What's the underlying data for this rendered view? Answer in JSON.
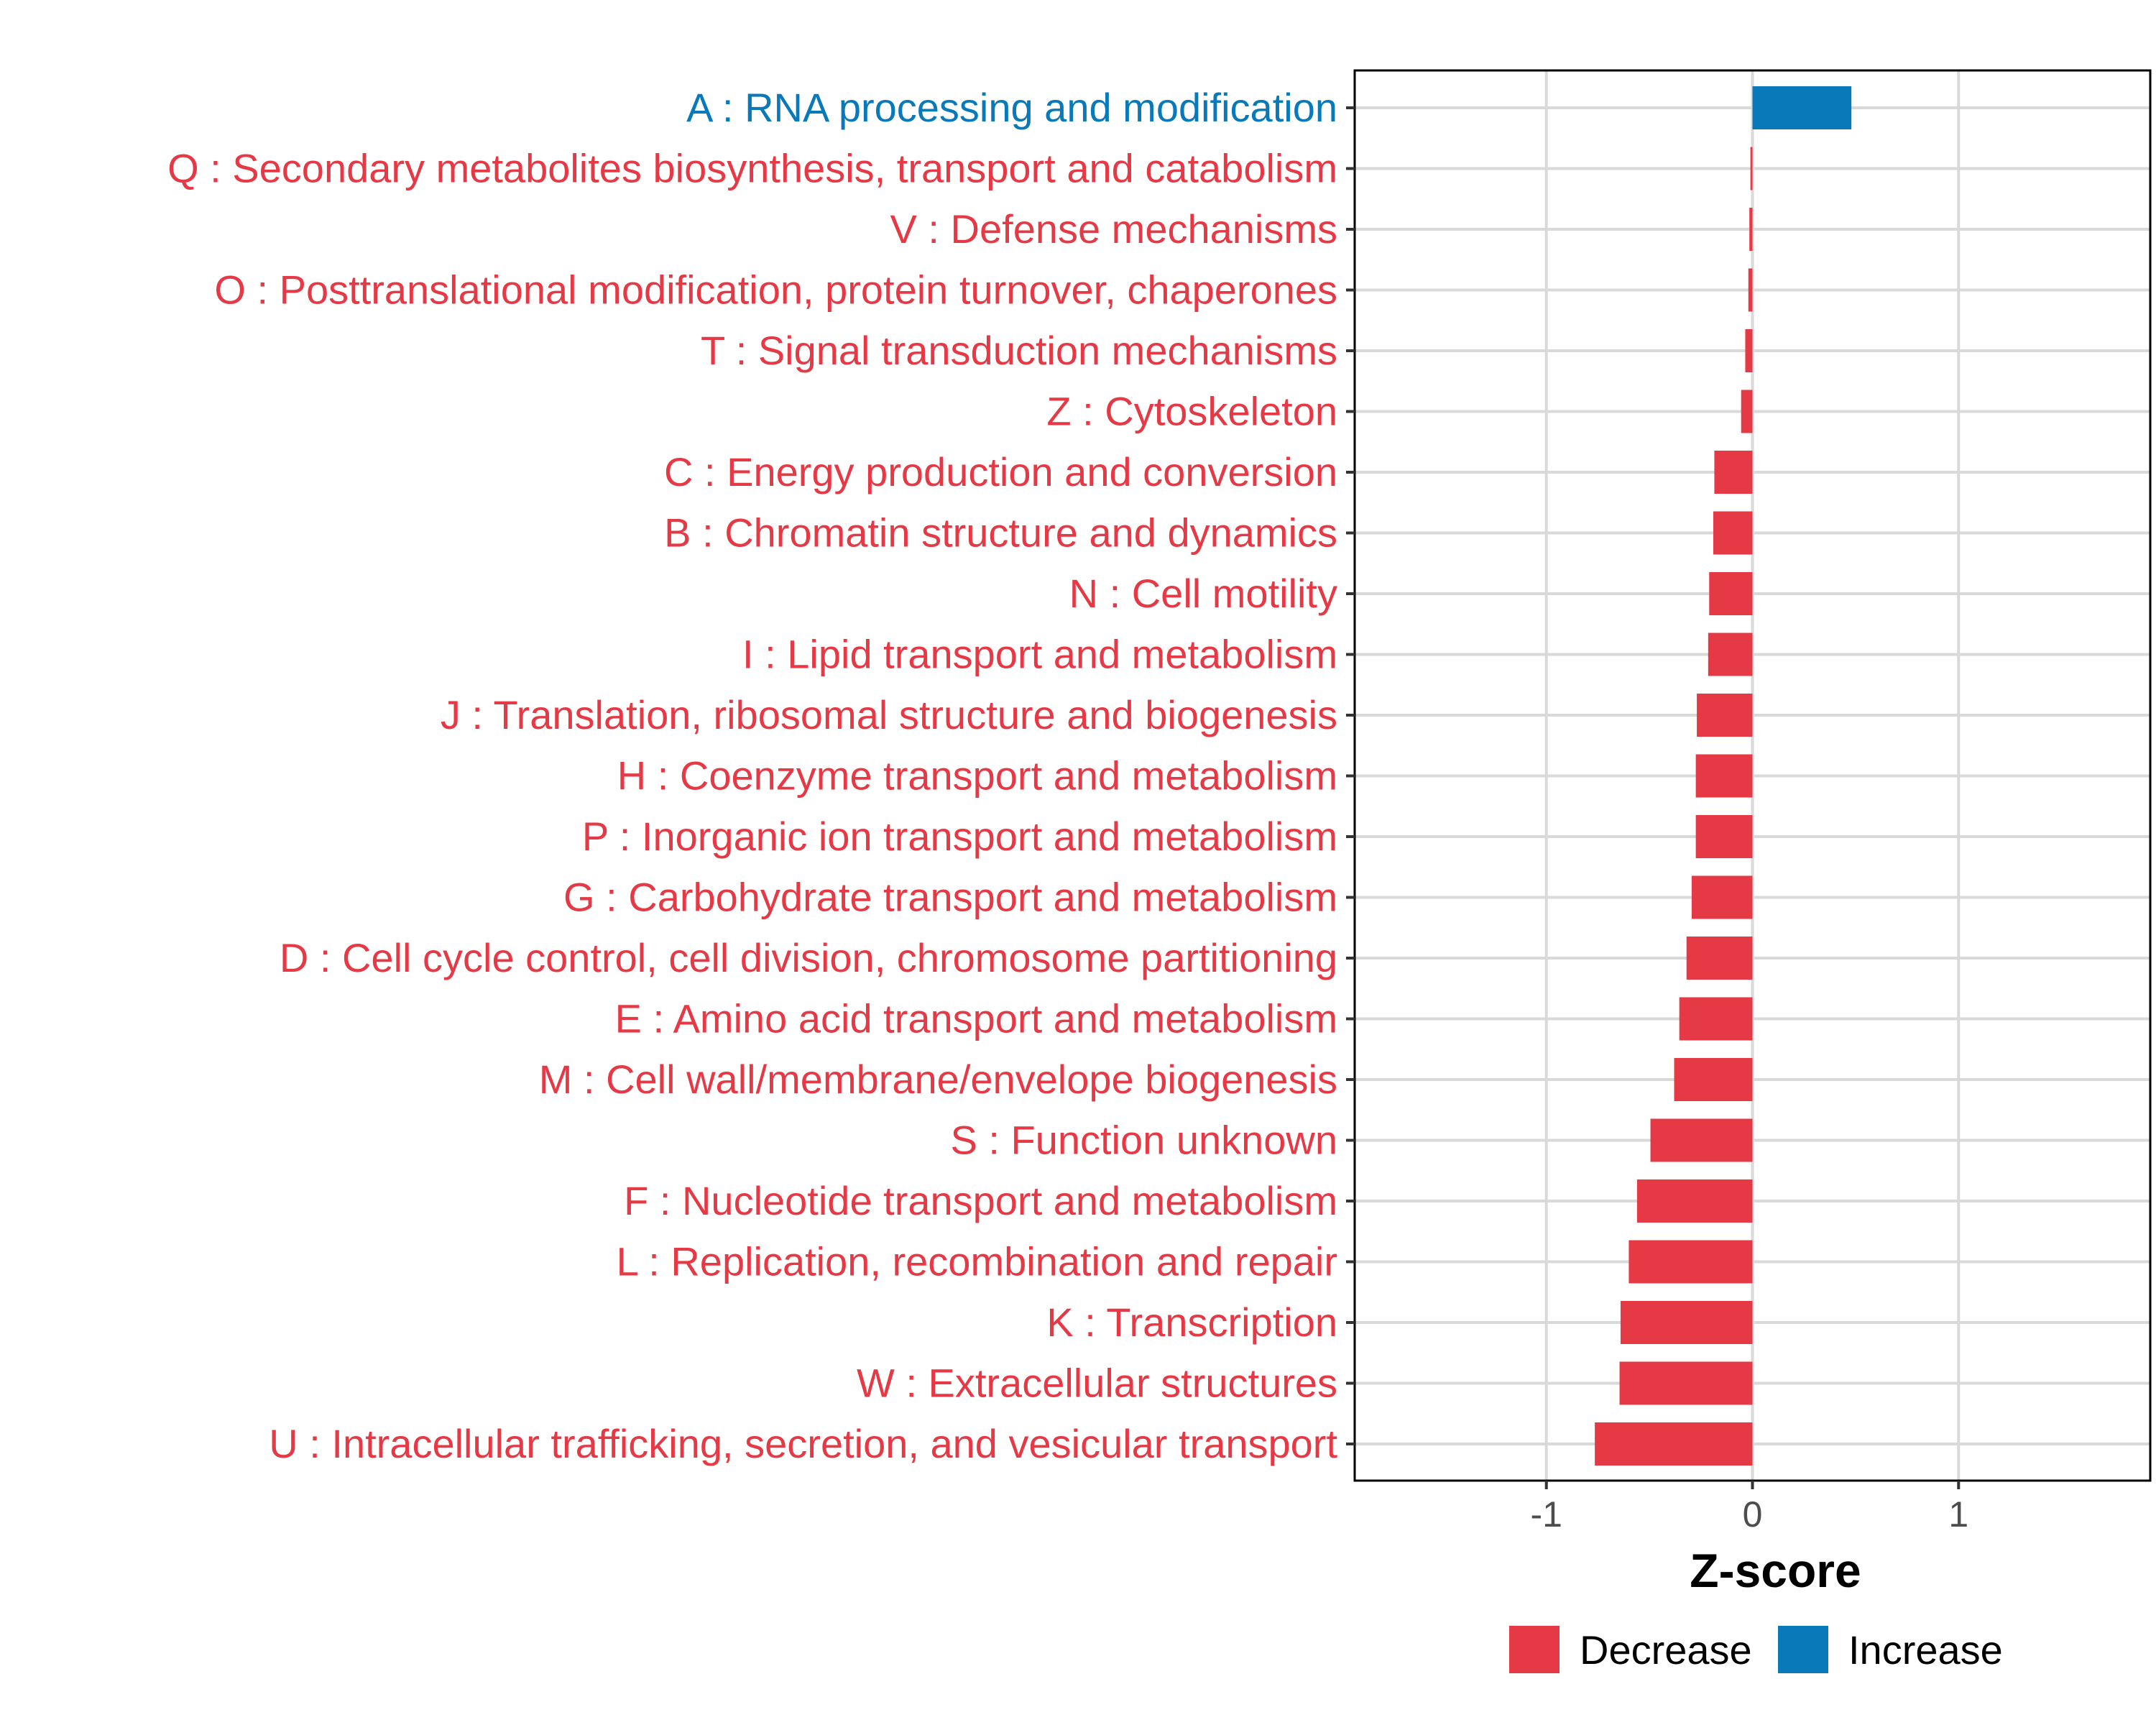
{
  "chart_data": {
    "type": "bar",
    "orientation": "horizontal",
    "title": "",
    "xlabel": "Z-score",
    "ylabel": "",
    "xlim": [
      -1.93,
      1.93
    ],
    "xticks": [
      -1,
      0,
      1
    ],
    "xtick_labels": [
      "-1",
      "0",
      "1"
    ],
    "grid": true,
    "legend_position": "bottom",
    "colors": {
      "Decrease": "#e63946",
      "Increase": "#0a79b9"
    },
    "legend": [
      {
        "key": "Decrease",
        "label": "Decrease"
      },
      {
        "key": "Increase",
        "label": "Increase"
      }
    ],
    "categories": [
      "A : RNA processing and modification",
      "Q : Secondary metabolites biosynthesis, transport and catabolism",
      "V : Defense mechanisms",
      "O : Posttranslational modification, protein turnover, chaperones",
      "T : Signal transduction mechanisms",
      "Z : Cytoskeleton",
      "C : Energy production and conversion",
      "B : Chromatin structure and dynamics",
      "N : Cell motility",
      "I : Lipid transport and metabolism",
      "J : Translation, ribosomal structure and biogenesis",
      "H : Coenzyme transport and metabolism",
      "P : Inorganic ion transport and metabolism",
      "G : Carbohydrate transport and metabolism",
      "D : Cell cycle control, cell division, chromosome partitioning",
      "E : Amino acid transport and metabolism",
      "M : Cell wall/membrane/envelope biogenesis",
      "S : Function unknown",
      "F : Nucleotide transport and metabolism",
      "L : Replication, recombination and repair",
      "K : Transcription",
      "W : Extracellular structures",
      "U : Intracellular trafficking, secretion, and vesicular transport"
    ],
    "values": [
      0.48,
      -0.01,
      -0.015,
      -0.02,
      -0.035,
      -0.055,
      -0.185,
      -0.19,
      -0.21,
      -0.215,
      -0.27,
      -0.275,
      -0.275,
      -0.295,
      -0.32,
      -0.355,
      -0.38,
      -0.495,
      -0.56,
      -0.6,
      -0.64,
      -0.645,
      -0.765
    ],
    "direction": [
      "Increase",
      "Decrease",
      "Decrease",
      "Decrease",
      "Decrease",
      "Decrease",
      "Decrease",
      "Decrease",
      "Decrease",
      "Decrease",
      "Decrease",
      "Decrease",
      "Decrease",
      "Decrease",
      "Decrease",
      "Decrease",
      "Decrease",
      "Decrease",
      "Decrease",
      "Decrease",
      "Decrease",
      "Decrease",
      "Decrease"
    ]
  }
}
